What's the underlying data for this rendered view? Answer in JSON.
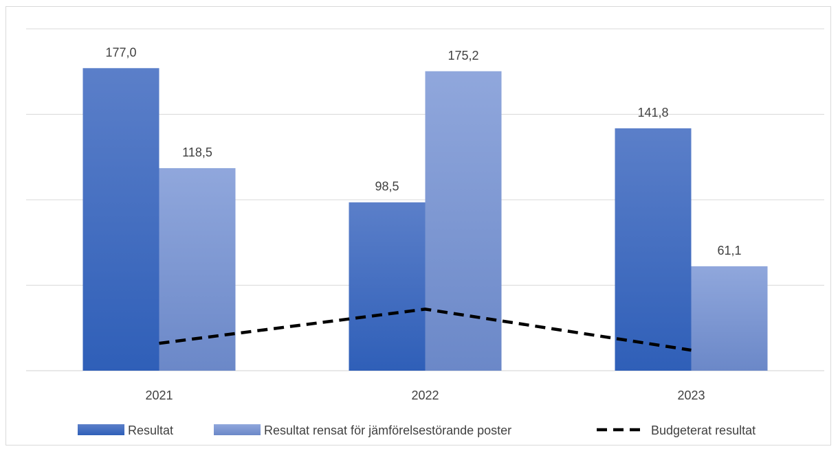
{
  "chart_data": {
    "type": "bar",
    "categories": [
      "2021",
      "2022",
      "2023"
    ],
    "series": [
      {
        "name": "Resultat",
        "kind": "bar",
        "values": [
          177.0,
          98.5,
          141.8
        ],
        "labels": [
          "177,0",
          "98,5",
          "141,8"
        ],
        "color": "#4472c4"
      },
      {
        "name": "Resultat rensat för jämförelsestörande poster",
        "kind": "bar",
        "values": [
          118.5,
          175.2,
          61.1
        ],
        "labels": [
          "118,5",
          "175,2",
          "61,1"
        ],
        "color": "#8faadc"
      },
      {
        "name": "Budgeterat resultat",
        "kind": "line",
        "style": "dashed",
        "values": [
          16,
          36,
          12
        ],
        "color": "#000000"
      }
    ],
    "ylim": [
      0,
      200
    ],
    "grid": true,
    "legend": "bottom"
  }
}
